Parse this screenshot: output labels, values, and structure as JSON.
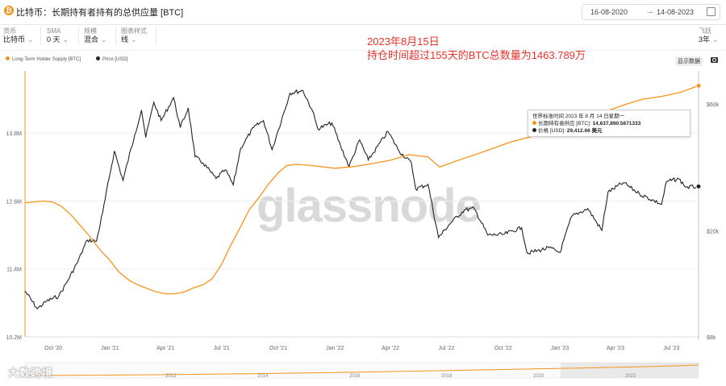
{
  "header": {
    "title": "比特币：长期持有者持有的总供应量 [BTC]",
    "coin_symbol": "₿",
    "date_from": "16-08-2020",
    "date_to": "14-08-2023"
  },
  "controls": [
    {
      "label": "货币",
      "value": "比特币"
    },
    {
      "label": "SMA",
      "value": "0 天"
    },
    {
      "label": "规模",
      "value": "混合"
    },
    {
      "label": "图表样式",
      "value": "线"
    }
  ],
  "right_control": {
    "label": "飞跃",
    "value": "3年"
  },
  "annotation": {
    "line1": "2023年8月15日",
    "line2": "持仓时间超过155天的BTC总数量为1463.789万"
  },
  "toolbar": {
    "data_button": "显示数据"
  },
  "tooltip": {
    "time": "世界标准时间 2023 年 8 月 14 日星期一",
    "row1_label": "长期持有者供应 [BTC]:",
    "row1_value": "14,637,890.5671333",
    "row2_label": "价格 [USD]:",
    "row2_value": "29,412.66 美元"
  },
  "watermark": "glassnode",
  "logo_text": "大数跨境",
  "navigator_years": [
    "2012",
    "2014",
    "2016",
    "2018",
    "2020",
    "2022"
  ],
  "colors": {
    "supply": "#f7931a",
    "price": "#222222",
    "annotation": "#e8312b",
    "coin": "#f7931a"
  },
  "chart_data": {
    "type": "line",
    "title": "比特币：长期持有者持有的总供应量 [BTC]",
    "x_tick_labels": [
      "Oct '20",
      "Jan '21",
      "Apr '21",
      "Jul '21",
      "Oct '21",
      "Jan '22",
      "Apr '22",
      "Jul '22",
      "Oct '22",
      "Jan '23",
      "Apr '23",
      "Jul '23"
    ],
    "y_left_ticks": [
      "10.2M",
      "11.4M",
      "12.6M",
      "13.8M"
    ],
    "y_right_ticks": [
      "$8k",
      "$20k",
      "$60k"
    ],
    "y_left_lim": [
      10200000,
      14900000
    ],
    "y_right_lim": [
      8000,
      80000
    ],
    "y_right_scale": "log",
    "x_range": [
      "2020-08-16",
      "2023-08-14"
    ],
    "grid": true,
    "legend_position": "top-left",
    "series": [
      {
        "name": "Long-Term Holder Supply [BTC]",
        "axis": "left",
        "color": "#f7931a",
        "points": [
          [
            "2020-08-16",
            12570000
          ],
          [
            "2020-09-15",
            12600000
          ],
          [
            "2020-10-01",
            12580000
          ],
          [
            "2020-10-15",
            12500000
          ],
          [
            "2020-11-01",
            12330000
          ],
          [
            "2020-11-15",
            12150000
          ],
          [
            "2020-12-01",
            11950000
          ],
          [
            "2020-12-15",
            11750000
          ],
          [
            "2021-01-01",
            11550000
          ],
          [
            "2021-01-15",
            11350000
          ],
          [
            "2021-02-01",
            11200000
          ],
          [
            "2021-02-15",
            11120000
          ],
          [
            "2021-03-01",
            11060000
          ],
          [
            "2021-03-15",
            11000000
          ],
          [
            "2021-04-01",
            10960000
          ],
          [
            "2021-04-15",
            10960000
          ],
          [
            "2021-05-01",
            10990000
          ],
          [
            "2021-05-15",
            11060000
          ],
          [
            "2021-06-01",
            11120000
          ],
          [
            "2021-06-15",
            11220000
          ],
          [
            "2021-07-01",
            11480000
          ],
          [
            "2021-07-15",
            11800000
          ],
          [
            "2021-08-01",
            12150000
          ],
          [
            "2021-08-15",
            12450000
          ],
          [
            "2021-09-01",
            12680000
          ],
          [
            "2021-09-15",
            12900000
          ],
          [
            "2021-10-01",
            13100000
          ],
          [
            "2021-10-15",
            13230000
          ],
          [
            "2021-11-01",
            13250000
          ],
          [
            "2021-12-01",
            13220000
          ],
          [
            "2022-01-01",
            13180000
          ],
          [
            "2022-02-01",
            13210000
          ],
          [
            "2022-03-01",
            13260000
          ],
          [
            "2022-04-01",
            13320000
          ],
          [
            "2022-05-01",
            13420000
          ],
          [
            "2022-06-01",
            13380000
          ],
          [
            "2022-06-20",
            13200000
          ],
          [
            "2022-07-15",
            13300000
          ],
          [
            "2022-09-01",
            13480000
          ],
          [
            "2022-10-15",
            13650000
          ],
          [
            "2022-12-01",
            13780000
          ],
          [
            "2023-01-01",
            13880000
          ],
          [
            "2023-02-01",
            14050000
          ],
          [
            "2023-02-20",
            14000000
          ],
          [
            "2023-03-15",
            14180000
          ],
          [
            "2023-04-15",
            14300000
          ],
          [
            "2023-05-15",
            14400000
          ],
          [
            "2023-06-15",
            14450000
          ],
          [
            "2023-07-15",
            14520000
          ],
          [
            "2023-08-14",
            14637890
          ]
        ]
      },
      {
        "name": "Price [USD]",
        "axis": "right",
        "color": "#222222",
        "points": [
          [
            "2020-08-16",
            11900
          ],
          [
            "2020-09-05",
            10200
          ],
          [
            "2020-09-20",
            10900
          ],
          [
            "2020-10-10",
            11400
          ],
          [
            "2020-10-25",
            13100
          ],
          [
            "2020-11-10",
            15400
          ],
          [
            "2020-11-25",
            18500
          ],
          [
            "2020-12-10",
            18300
          ],
          [
            "2020-12-20",
            23500
          ],
          [
            "2021-01-08",
            40000
          ],
          [
            "2021-01-22",
            31000
          ],
          [
            "2021-02-10",
            46000
          ],
          [
            "2021-02-21",
            57000
          ],
          [
            "2021-02-28",
            45000
          ],
          [
            "2021-03-13",
            61000
          ],
          [
            "2021-03-25",
            52000
          ],
          [
            "2021-04-14",
            63500
          ],
          [
            "2021-04-25",
            49000
          ],
          [
            "2021-05-08",
            58000
          ],
          [
            "2021-05-19",
            38000
          ],
          [
            "2021-06-01",
            36000
          ],
          [
            "2021-06-22",
            31500
          ],
          [
            "2021-07-07",
            34000
          ],
          [
            "2021-07-20",
            29800
          ],
          [
            "2021-08-01",
            41000
          ],
          [
            "2021-08-22",
            49000
          ],
          [
            "2021-09-07",
            52000
          ],
          [
            "2021-09-21",
            40500
          ],
          [
            "2021-10-01",
            48000
          ],
          [
            "2021-10-20",
            66000
          ],
          [
            "2021-11-10",
            67500
          ],
          [
            "2021-11-25",
            57000
          ],
          [
            "2021-12-04",
            48500
          ],
          [
            "2021-12-27",
            51000
          ],
          [
            "2022-01-10",
            41800
          ],
          [
            "2022-01-24",
            35000
          ],
          [
            "2022-02-10",
            44000
          ],
          [
            "2022-02-24",
            37000
          ],
          [
            "2022-03-28",
            47300
          ],
          [
            "2022-04-15",
            40000
          ],
          [
            "2022-05-05",
            36000
          ],
          [
            "2022-05-12",
            28800
          ],
          [
            "2022-06-01",
            30000
          ],
          [
            "2022-06-18",
            18900
          ],
          [
            "2022-07-08",
            21500
          ],
          [
            "2022-07-30",
            24000
          ],
          [
            "2022-08-15",
            24300
          ],
          [
            "2022-09-06",
            19300
          ],
          [
            "2022-10-01",
            19400
          ],
          [
            "2022-10-31",
            20600
          ],
          [
            "2022-11-09",
            16500
          ],
          [
            "2022-12-15",
            17300
          ],
          [
            "2023-01-01",
            16600
          ],
          [
            "2023-01-20",
            22700
          ],
          [
            "2023-02-15",
            24300
          ],
          [
            "2023-03-10",
            20100
          ],
          [
            "2023-03-20",
            28000
          ],
          [
            "2023-04-14",
            30400
          ],
          [
            "2023-05-10",
            27600
          ],
          [
            "2023-06-15",
            25200
          ],
          [
            "2023-06-23",
            30700
          ],
          [
            "2023-07-13",
            31400
          ],
          [
            "2023-07-25",
            29200
          ],
          [
            "2023-08-14",
            29412
          ]
        ]
      }
    ],
    "tooltip_date": "2023-08-14"
  }
}
